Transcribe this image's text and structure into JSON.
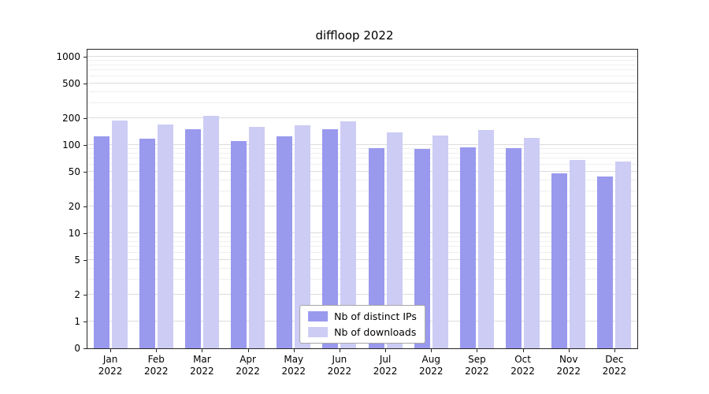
{
  "chart_data": {
    "type": "bar",
    "title": "diffloop 2022",
    "categories": [
      "Jan 2022",
      "Feb 2022",
      "Mar 2022",
      "Apr 2022",
      "May 2022",
      "Jun 2022",
      "Jul 2022",
      "Aug 2022",
      "Sep 2022",
      "Oct 2022",
      "Nov 2022",
      "Dec 2022"
    ],
    "series": [
      {
        "name": "Nb of distinct IPs",
        "color": "#9999ee",
        "values": [
          125,
          118,
          150,
          110,
          125,
          150,
          93,
          90,
          95,
          92,
          48,
          44
        ]
      },
      {
        "name": "Nb of downloads",
        "color": "#ccccf5",
        "values": [
          190,
          170,
          215,
          160,
          168,
          185,
          140,
          128,
          148,
          120,
          68,
          65
        ]
      }
    ],
    "yscale": "symlog",
    "yticks": [
      0,
      1,
      2,
      5,
      10,
      20,
      50,
      100,
      200,
      500,
      1000
    ],
    "ylim": [
      0,
      1000
    ],
    "grid": true,
    "legend_position": "lower center"
  }
}
